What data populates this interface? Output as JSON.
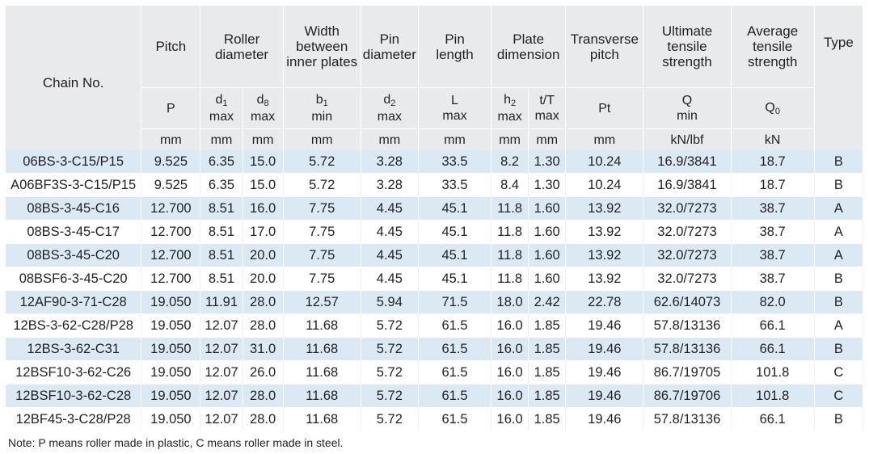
{
  "header": {
    "chain_no": "Chain No.",
    "columns": [
      {
        "title": "Pitch",
        "symbol": "P",
        "unit": "mm"
      },
      {
        "title": "Roller diameter",
        "title_lines": [
          "Roller",
          "diameter"
        ]
      },
      {
        "title": "Width between inner plates",
        "title_lines": [
          "Width",
          "between",
          "inner plates"
        ],
        "symbol_main": "b",
        "symbol_sub": "1",
        "symbol_line2": "min",
        "unit": "mm"
      },
      {
        "title": "Pin diameter",
        "title_lines": [
          "Pin",
          "diameter"
        ],
        "symbol_main": "d",
        "symbol_sub": "2",
        "symbol_line2": "max",
        "unit": "mm"
      },
      {
        "title": "Pin length",
        "title_lines": [
          "Pin",
          "length"
        ],
        "symbol_main": "L",
        "symbol_line2": "max",
        "unit": "mm"
      },
      {
        "title": "Plate dimension",
        "title_lines": [
          "Plate",
          "dimension"
        ]
      },
      {
        "title": "Transverse pitch",
        "title_lines": [
          "Transverse",
          "pitch"
        ],
        "symbol": "Pt",
        "unit": "mm"
      },
      {
        "title": "Ultimate tensile strength",
        "title_lines": [
          "Ultimate",
          "tensile",
          "strength"
        ],
        "symbol_main": "Q",
        "symbol_line2": "min",
        "unit": "kN/lbf"
      },
      {
        "title": "Average tensile strength",
        "title_lines": [
          "Average",
          "tensile",
          "strength"
        ],
        "symbol_main": "Q",
        "symbol_sub": "0",
        "unit": "kN"
      },
      {
        "title": "Type"
      }
    ],
    "roller_sub": [
      {
        "symbol_main": "d",
        "symbol_sub": "1",
        "symbol_line2": "max",
        "unit": "mm"
      },
      {
        "symbol_main": "d",
        "symbol_sub": "8",
        "symbol_line2": "max",
        "unit": "mm"
      }
    ],
    "plate_sub": [
      {
        "symbol_main": "h",
        "symbol_sub": "2",
        "symbol_line2": "max",
        "unit": "mm"
      },
      {
        "symbol_main": "t/T",
        "symbol_line2": "max",
        "unit": "mm"
      }
    ]
  },
  "rows": [
    [
      "06BS-3-C15/P15",
      "9.525",
      "6.35",
      "15.0",
      "5.72",
      "3.28",
      "33.5",
      "8.2",
      "1.30",
      "10.24",
      "16.9/3841",
      "18.7",
      "B"
    ],
    [
      "A06BF3S-3-C15/P15",
      "9.525",
      "6.35",
      "15.0",
      "5.72",
      "3.28",
      "33.5",
      "8.4",
      "1.30",
      "10.24",
      "16.9/3841",
      "18.7",
      "B"
    ],
    [
      "08BS-3-45-C16",
      "12.700",
      "8.51",
      "16.0",
      "7.75",
      "4.45",
      "45.1",
      "11.8",
      "1.60",
      "13.92",
      "32.0/7273",
      "38.7",
      "A"
    ],
    [
      "08BS-3-45-C17",
      "12.700",
      "8.51",
      "17.0",
      "7.75",
      "4.45",
      "45.1",
      "11.8",
      "1.60",
      "13.92",
      "32.0/7273",
      "38.7",
      "A"
    ],
    [
      "08BS-3-45-C20",
      "12.700",
      "8.51",
      "20.0",
      "7.75",
      "4.45",
      "45.1",
      "11.8",
      "1.60",
      "13.92",
      "32.0/7273",
      "38.7",
      "A"
    ],
    [
      "08BSF6-3-45-C20",
      "12.700",
      "8.51",
      "20.0",
      "7.75",
      "4.45",
      "45.1",
      "11.8",
      "1.60",
      "13.92",
      "32.0/7273",
      "38.7",
      "B"
    ],
    [
      "12AF90-3-71-C28",
      "19.050",
      "11.91",
      "28.0",
      "12.57",
      "5.94",
      "71.5",
      "18.0",
      "2.42",
      "22.78",
      "62.6/14073",
      "82.0",
      "B"
    ],
    [
      "12BS-3-62-C28/P28",
      "19.050",
      "12.07",
      "28.0",
      "11.68",
      "5.72",
      "61.5",
      "16.0",
      "1.85",
      "19.46",
      "57.8/13136",
      "66.1",
      "A"
    ],
    [
      "12BS-3-62-C31",
      "19.050",
      "12.07",
      "31.0",
      "11.68",
      "5.72",
      "61.5",
      "16.0",
      "1.85",
      "19.46",
      "57.8/13136",
      "66.1",
      "B"
    ],
    [
      "12BSF10-3-62-C26",
      "19.050",
      "12.07",
      "26.0",
      "11.68",
      "5.72",
      "61.5",
      "16.0",
      "1.85",
      "19.46",
      "86.7/19705",
      "101.8",
      "C"
    ],
    [
      "12BSF10-3-62-C28",
      "19.050",
      "12.07",
      "28.0",
      "11.68",
      "5.72",
      "61.5",
      "16.0",
      "1.85",
      "19.46",
      "86.7/19706",
      "101.8",
      "C"
    ],
    [
      "12BF45-3-C28/P28",
      "19.050",
      "12.07",
      "28.0",
      "11.68",
      "5.72",
      "61.5",
      "16.0",
      "1.85",
      "19.46",
      "57.8/13136",
      "66.1",
      "B"
    ]
  ],
  "note": "Note: P means roller made in plastic, C means roller made in steel.",
  "colors": {
    "header_bg": "#e9eaec",
    "stripe_bg": "#dbe9f5",
    "text": "#231f20"
  }
}
